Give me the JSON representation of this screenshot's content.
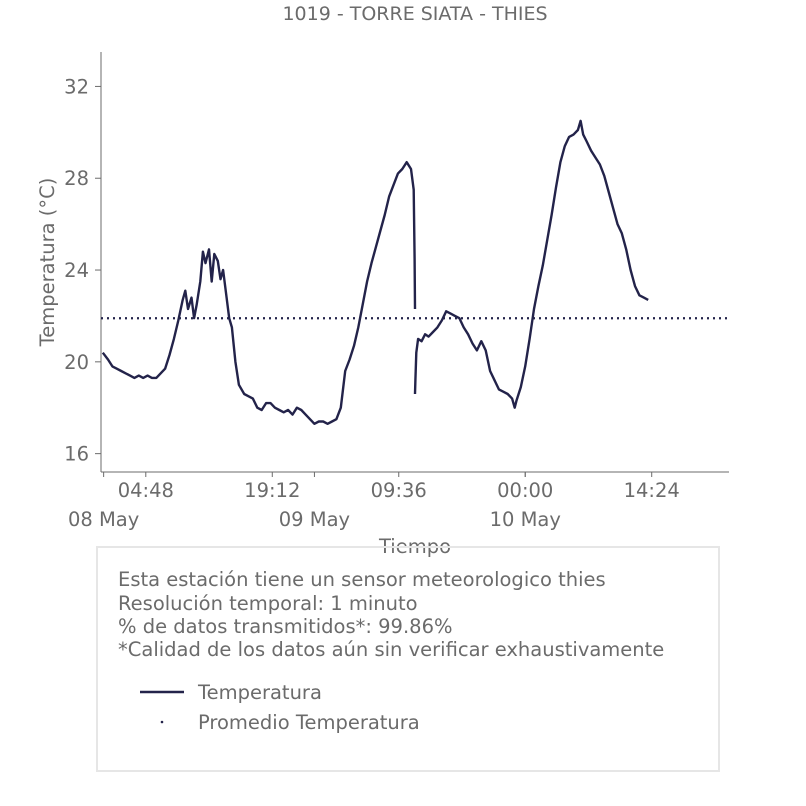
{
  "chart_data": {
    "type": "line",
    "title": "1019 - TORRE SIATA - THIES",
    "xlabel": "Tiempo",
    "ylabel": "Temperatura (°C)",
    "ylim": [
      15.2,
      33.5
    ],
    "xlim_hours": [
      -0.3,
      71.2
    ],
    "x_origin_date": "2024-05-08 00:00",
    "yticks": [
      16,
      20,
      24,
      28,
      32
    ],
    "xticks": [
      {
        "h": 4.8,
        "label": "04:48"
      },
      {
        "h": 19.2,
        "label": "19:12"
      },
      {
        "h": 33.6,
        "label": "09:36"
      },
      {
        "h": 48.0,
        "label": "00:00"
      },
      {
        "h": 62.4,
        "label": "14:24"
      }
    ],
    "xdates": [
      {
        "h": 0,
        "label": "08 May"
      },
      {
        "h": 24,
        "label": "09 May"
      },
      {
        "h": 48,
        "label": "10 May"
      }
    ],
    "grid": false,
    "legend_position": "bottom",
    "series": [
      {
        "name": "Temperatura",
        "color": "#23234a",
        "segments": [
          [
            [
              -0.1,
              20.4
            ],
            [
              0.5,
              20.1
            ],
            [
              1.0,
              19.8
            ],
            [
              1.5,
              19.7
            ],
            [
              2.0,
              19.6
            ],
            [
              2.5,
              19.5
            ],
            [
              3.0,
              19.4
            ],
            [
              3.5,
              19.3
            ],
            [
              4.0,
              19.4
            ],
            [
              4.5,
              19.3
            ],
            [
              5.0,
              19.4
            ],
            [
              5.5,
              19.3
            ],
            [
              6.0,
              19.3
            ],
            [
              6.5,
              19.5
            ],
            [
              7.0,
              19.7
            ],
            [
              7.5,
              20.3
            ],
            [
              8.0,
              21.0
            ],
            [
              8.5,
              21.8
            ],
            [
              9.0,
              22.7
            ],
            [
              9.3,
              23.1
            ],
            [
              9.6,
              22.3
            ],
            [
              10.0,
              22.8
            ],
            [
              10.3,
              21.9
            ],
            [
              10.6,
              22.5
            ],
            [
              11.0,
              23.5
            ],
            [
              11.3,
              24.8
            ],
            [
              11.6,
              24.3
            ],
            [
              12.0,
              24.9
            ],
            [
              12.3,
              23.5
            ],
            [
              12.6,
              24.7
            ],
            [
              13.0,
              24.4
            ],
            [
              13.3,
              23.6
            ],
            [
              13.6,
              24.0
            ],
            [
              14.0,
              22.8
            ],
            [
              14.3,
              21.9
            ],
            [
              14.6,
              21.5
            ],
            [
              15.0,
              20.0
            ],
            [
              15.4,
              19.0
            ],
            [
              16.0,
              18.6
            ],
            [
              16.5,
              18.5
            ],
            [
              17.0,
              18.4
            ],
            [
              17.5,
              18.0
            ],
            [
              18.0,
              17.9
            ],
            [
              18.5,
              18.2
            ],
            [
              19.0,
              18.2
            ],
            [
              19.5,
              18.0
            ],
            [
              20.0,
              17.9
            ],
            [
              20.5,
              17.8
            ],
            [
              21.0,
              17.9
            ],
            [
              21.5,
              17.7
            ],
            [
              22.0,
              18.0
            ],
            [
              22.5,
              17.9
            ],
            [
              23.0,
              17.7
            ],
            [
              23.5,
              17.5
            ],
            [
              24.0,
              17.3
            ],
            [
              24.5,
              17.4
            ],
            [
              25.0,
              17.4
            ],
            [
              25.5,
              17.3
            ],
            [
              26.0,
              17.4
            ],
            [
              26.5,
              17.5
            ],
            [
              27.0,
              18.0
            ],
            [
              27.5,
              19.6
            ],
            [
              28.0,
              20.1
            ],
            [
              28.5,
              20.7
            ],
            [
              29.0,
              21.5
            ],
            [
              29.5,
              22.5
            ],
            [
              30.0,
              23.5
            ],
            [
              30.5,
              24.3
            ],
            [
              31.0,
              25.0
            ],
            [
              31.5,
              25.7
            ],
            [
              32.0,
              26.4
            ],
            [
              32.5,
              27.2
            ],
            [
              33.0,
              27.7
            ],
            [
              33.5,
              28.2
            ],
            [
              34.0,
              28.4
            ],
            [
              34.5,
              28.7
            ],
            [
              35.0,
              28.4
            ],
            [
              35.3,
              27.5
            ],
            [
              35.4,
              24.5
            ],
            [
              35.45,
              22.3
            ]
          ],
          [
            [
              35.45,
              18.6
            ],
            [
              35.5,
              19.2
            ],
            [
              35.6,
              20.4
            ],
            [
              35.8,
              21.0
            ],
            [
              36.2,
              20.9
            ],
            [
              36.6,
              21.2
            ],
            [
              37.0,
              21.1
            ],
            [
              37.5,
              21.3
            ],
            [
              38.0,
              21.5
            ],
            [
              38.5,
              21.8
            ],
            [
              39.0,
              22.2
            ],
            [
              39.5,
              22.1
            ],
            [
              40.0,
              22.0
            ],
            [
              40.5,
              21.9
            ],
            [
              41.0,
              21.5
            ],
            [
              41.5,
              21.2
            ],
            [
              42.0,
              20.8
            ],
            [
              42.5,
              20.5
            ],
            [
              43.0,
              20.9
            ],
            [
              43.5,
              20.5
            ],
            [
              44.0,
              19.6
            ],
            [
              44.5,
              19.2
            ],
            [
              45.0,
              18.8
            ],
            [
              45.5,
              18.7
            ],
            [
              46.0,
              18.6
            ],
            [
              46.5,
              18.4
            ],
            [
              46.8,
              18.0
            ],
            [
              47.0,
              18.3
            ],
            [
              47.5,
              18.9
            ],
            [
              48.0,
              19.8
            ],
            [
              48.5,
              21.0
            ],
            [
              49.0,
              22.3
            ],
            [
              49.5,
              23.3
            ],
            [
              50.0,
              24.2
            ],
            [
              50.5,
              25.3
            ],
            [
              51.0,
              26.4
            ],
            [
              51.5,
              27.6
            ],
            [
              52.0,
              28.7
            ],
            [
              52.5,
              29.4
            ],
            [
              53.0,
              29.8
            ],
            [
              53.5,
              29.9
            ],
            [
              54.0,
              30.1
            ],
            [
              54.3,
              30.5
            ],
            [
              54.6,
              29.9
            ],
            [
              55.0,
              29.6
            ],
            [
              55.5,
              29.2
            ],
            [
              56.0,
              28.9
            ],
            [
              56.5,
              28.6
            ],
            [
              57.0,
              28.1
            ],
            [
              57.5,
              27.4
            ],
            [
              58.0,
              26.7
            ],
            [
              58.5,
              26.0
            ],
            [
              59.0,
              25.6
            ],
            [
              59.5,
              24.9
            ],
            [
              60.0,
              24.0
            ],
            [
              60.5,
              23.3
            ],
            [
              61.0,
              22.9
            ],
            [
              61.5,
              22.8
            ],
            [
              62.0,
              22.7
            ]
          ]
        ]
      },
      {
        "name": "Promedio Temperatura",
        "color": "#23234a",
        "style": "dotted",
        "values": [
          21.9
        ]
      }
    ]
  },
  "info": {
    "lines": [
      "Esta estación tiene un sensor meteorologico thies",
      "Resolución temporal: 1 minuto",
      "% de datos transmitidos*: 99.86%",
      "*Calidad de los datos aún sin verificar exhaustivamente"
    ]
  },
  "legend": {
    "items": [
      "Temperatura",
      "Promedio Temperatura"
    ]
  }
}
